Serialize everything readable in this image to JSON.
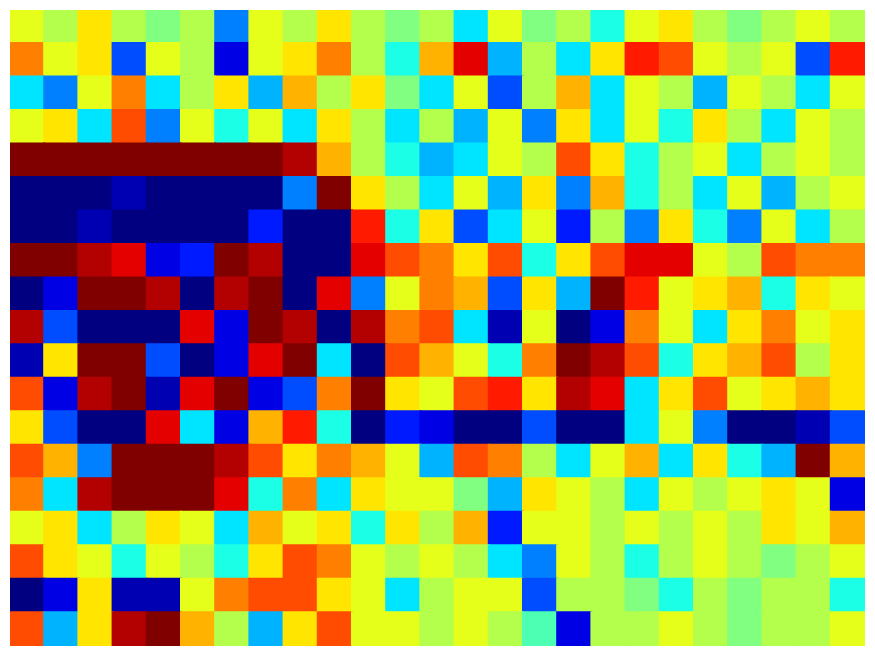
{
  "chart_data": {
    "type": "heatmap",
    "tick_labels": false,
    "grid": false,
    "color_range": [
      -1,
      1
    ],
    "cells": [
      [
        0.2,
        0.1,
        0.3,
        0.1,
        0,
        0.1,
        -0.5,
        0.2,
        0.1,
        0.3,
        0.1,
        0,
        0.1,
        -0.3,
        0.2,
        0,
        0.1,
        -0.2,
        0.2,
        0.3,
        0.1,
        0,
        0.1,
        0.2,
        0.1
      ],
      [
        0.5,
        0.2,
        0.3,
        -0.6,
        0.2,
        0.1,
        -0.8,
        0.2,
        0.3,
        0.5,
        0.1,
        -0.2,
        0.4,
        0.8,
        -0.4,
        0.1,
        -0.3,
        0.3,
        0.7,
        0.6,
        0.2,
        0.1,
        0.2,
        -0.6,
        0.7
      ],
      [
        -0.3,
        -0.5,
        0.2,
        0.5,
        -0.3,
        0.1,
        0.3,
        -0.4,
        0.4,
        0.1,
        0.3,
        0,
        -0.3,
        0.2,
        -0.6,
        0.1,
        0.4,
        -0.3,
        0.2,
        0.1,
        -0.4,
        0.2,
        0.1,
        -0.3,
        0.2
      ],
      [
        0.2,
        0.3,
        -0.3,
        0.6,
        -0.5,
        0.2,
        -0.2,
        0.2,
        -0.3,
        0.3,
        0.1,
        -0.3,
        0.1,
        -0.4,
        0.2,
        -0.5,
        0.3,
        -0.3,
        0.2,
        -0.2,
        0.3,
        0.1,
        -0.3,
        0.2,
        0.1
      ],
      [
        1,
        1,
        1,
        1,
        1,
        1,
        1,
        1,
        0.9,
        0.4,
        0.1,
        -0.2,
        -0.4,
        -0.3,
        0.2,
        0.1,
        0.6,
        0.3,
        -0.2,
        0.1,
        0.2,
        -0.3,
        0.1,
        0.2,
        0.1
      ],
      [
        -1,
        -1,
        -1,
        -0.9,
        -1,
        -1,
        -1,
        -1,
        -0.5,
        1,
        0.3,
        0.1,
        -0.3,
        0.2,
        -0.4,
        0.3,
        -0.5,
        0.4,
        -0.2,
        0.1,
        -0.3,
        0.2,
        -0.4,
        0.1,
        0.2
      ],
      [
        -1,
        -1,
        -0.9,
        -1,
        -1,
        -1,
        -1,
        -0.7,
        -1,
        -1,
        0.7,
        -0.2,
        0.3,
        -0.6,
        -0.3,
        0.2,
        -0.7,
        0.1,
        -0.5,
        0.3,
        -0.2,
        -0.5,
        0.2,
        -0.3,
        0.1
      ],
      [
        1,
        1,
        0.9,
        0.8,
        -0.8,
        -0.7,
        1,
        0.9,
        -1,
        -1,
        0.8,
        0.6,
        0.5,
        0.3,
        0.6,
        -0.2,
        0.3,
        0.6,
        0.8,
        0.8,
        0.2,
        0.1,
        0.6,
        0.5,
        0.5
      ],
      [
        -1,
        -0.8,
        1,
        1,
        0.9,
        -1,
        0.9,
        1,
        -1,
        0.8,
        -0.5,
        0.2,
        0.5,
        0.4,
        -0.6,
        0.3,
        -0.4,
        1,
        0.7,
        0.2,
        0.3,
        0.4,
        -0.2,
        0.3,
        0.2
      ],
      [
        0.9,
        -0.6,
        -1,
        -1,
        -1,
        0.8,
        -0.8,
        1,
        0.9,
        -1,
        0.9,
        0.5,
        0.6,
        -0.3,
        -0.9,
        0.2,
        -1,
        -0.8,
        0.5,
        0.2,
        -0.3,
        0.3,
        0.5,
        0.2,
        0.3
      ],
      [
        -0.9,
        0.3,
        1,
        1,
        -0.6,
        -1,
        -0.8,
        0.8,
        1,
        -0.3,
        -1,
        0.6,
        0.4,
        0.2,
        -0.2,
        0.5,
        1,
        0.9,
        0.6,
        -0.2,
        0.3,
        0.4,
        0.6,
        0.1,
        0.3
      ],
      [
        0.6,
        -0.8,
        0.9,
        1,
        -0.9,
        0.8,
        1,
        -0.8,
        -0.6,
        0.5,
        1,
        0.3,
        0.2,
        0.6,
        0.7,
        0.3,
        0.9,
        0.8,
        -0.3,
        0.3,
        0.6,
        0.2,
        0.3,
        0.4,
        0.3
      ],
      [
        0.3,
        -0.6,
        -1,
        -1,
        0.8,
        -0.3,
        -0.8,
        0.4,
        0.7,
        -0.2,
        -1,
        -0.7,
        -0.8,
        -1,
        -1,
        -0.6,
        -1,
        -1,
        -0.3,
        0.2,
        -0.5,
        -1,
        -1,
        -0.9,
        -0.6
      ],
      [
        0.6,
        0.4,
        -0.5,
        1,
        1,
        1,
        0.9,
        0.6,
        0.3,
        0.5,
        0.4,
        0.2,
        -0.4,
        0.6,
        0.5,
        0.1,
        -0.3,
        0.2,
        0.4,
        -0.3,
        0.3,
        -0.2,
        -0.4,
        1,
        0.4
      ],
      [
        0.5,
        -0.3,
        0.9,
        1,
        1,
        1,
        0.8,
        -0.2,
        0.5,
        -0.3,
        0.3,
        0.2,
        0.2,
        0,
        -0.4,
        0.3,
        0.2,
        0.1,
        -0.3,
        0.2,
        0.1,
        0.2,
        0.3,
        0.2,
        -0.8
      ],
      [
        0.2,
        0.3,
        -0.3,
        0.1,
        0.3,
        0.2,
        -0.3,
        0.4,
        0.2,
        0.3,
        -0.2,
        0.3,
        0.1,
        0.4,
        -0.7,
        0.2,
        0.2,
        0.1,
        0.2,
        0.1,
        0.2,
        0.1,
        0.3,
        0.2,
        0.4
      ],
      [
        0.6,
        0.3,
        0.2,
        -0.2,
        0.2,
        0.1,
        -0.2,
        0.3,
        0.6,
        0.5,
        0.2,
        0.1,
        0.2,
        0.1,
        -0.3,
        -0.5,
        0.2,
        0.1,
        -0.2,
        0.1,
        0.2,
        0.1,
        0,
        0.1,
        0.2
      ],
      [
        -1,
        -0.8,
        0.3,
        -0.9,
        -0.9,
        0.2,
        0.5,
        0.6,
        0.6,
        0.3,
        0.2,
        -0.3,
        0.1,
        0.2,
        0.2,
        -0.6,
        0.1,
        0.1,
        0,
        -0.2,
        0.1,
        0,
        0.1,
        0.1,
        -0.2
      ],
      [
        0.6,
        -0.4,
        0.3,
        0.9,
        1,
        0.4,
        0.1,
        -0.4,
        0.3,
        0.6,
        0.2,
        0.2,
        0.1,
        0.2,
        0.1,
        -0.1,
        -0.8,
        0.1,
        0.1,
        0.2,
        0.1,
        0,
        0.1,
        0.1,
        0.2
      ]
    ]
  }
}
